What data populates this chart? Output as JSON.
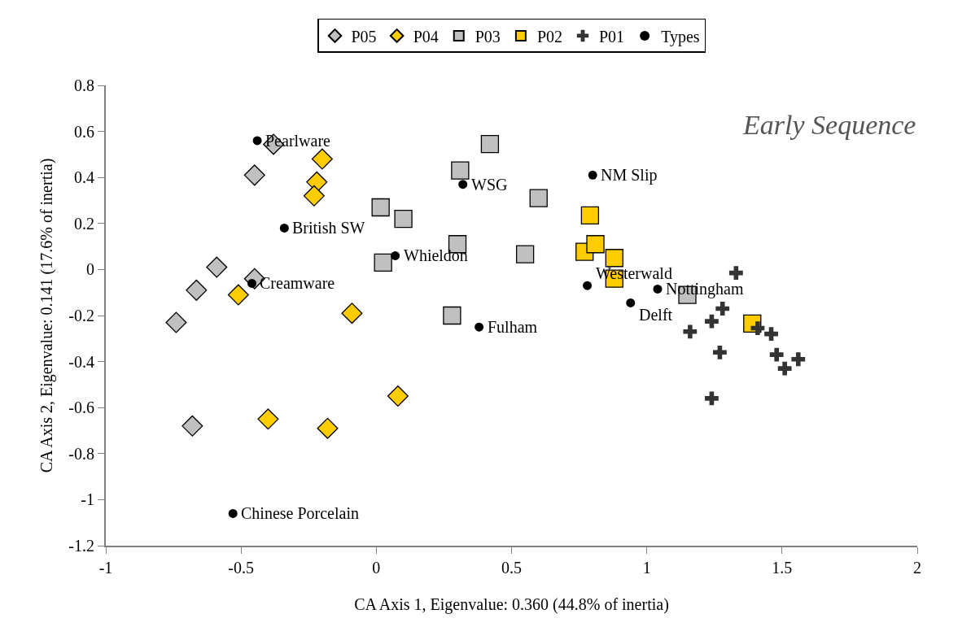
{
  "chart_data": {
    "type": "scatter",
    "xlabel": "CA Axis 1, Eigenvalue: 0.360 (44.8% of inertia)",
    "ylabel": "CA Axis 2, Eigenvalue: 0.141 (17.6% of inertia)",
    "xlim": [
      -1,
      2
    ],
    "xticks": [
      -1,
      -0.5,
      0,
      0.5,
      1,
      1.5,
      2
    ],
    "ylim": [
      -1.2,
      0.8
    ],
    "yticks": [
      -1.2,
      -1,
      -0.8,
      -0.6,
      -0.4,
      -0.2,
      0,
      0.2,
      0.4,
      0.6,
      0.8
    ],
    "legend": "top",
    "series": [
      {
        "name": "P05",
        "color": "#c0c0c0",
        "marker": "diamond",
        "x": [
          -0.38,
          -0.45,
          -0.59,
          -0.665,
          -0.45,
          -0.74,
          -0.68
        ],
        "values": [
          0.544,
          0.41,
          0.01,
          -0.09,
          -0.04,
          -0.23,
          -0.68
        ]
      },
      {
        "name": "P04",
        "color": "#ffcc00",
        "marker": "diamond",
        "x": [
          -0.2,
          -0.22,
          -0.23,
          -0.51,
          -0.09,
          0.08,
          -0.4,
          -0.18
        ],
        "values": [
          0.48,
          0.38,
          0.32,
          -0.11,
          -0.19,
          -0.55,
          -0.65,
          -0.69
        ]
      },
      {
        "name": "P03",
        "color": "#c0c0c0",
        "marker": "square",
        "x": [
          0.42,
          0.31,
          0.6,
          0.016,
          0.1,
          0.3,
          0.55,
          0.025,
          0.28,
          1.15
        ],
        "values": [
          0.545,
          0.43,
          0.31,
          0.27,
          0.22,
          0.11,
          0.066,
          0.03,
          -0.2,
          -0.11
        ]
      },
      {
        "name": "P02",
        "color": "#ffcc00",
        "marker": "square",
        "x": [
          0.79,
          0.77,
          0.81,
          0.88,
          0.88,
          1.39
        ],
        "values": [
          0.235,
          0.077,
          0.11,
          0.05,
          -0.04,
          -0.235
        ]
      },
      {
        "name": "P01",
        "color": "#333333",
        "marker": "cross",
        "x": [
          1.33,
          1.28,
          1.24,
          1.16,
          1.41,
          1.46,
          1.27,
          1.48,
          1.56,
          1.51,
          1.24
        ],
        "values": [
          -0.015,
          -0.17,
          -0.225,
          -0.27,
          -0.255,
          -0.28,
          -0.36,
          -0.37,
          -0.39,
          -0.43,
          -0.56
        ]
      },
      {
        "name": "Types",
        "color": "#000000",
        "marker": "circle",
        "x": [
          -0.44,
          -0.34,
          -0.46,
          0.32,
          0.8,
          0.07,
          0.38,
          0.78,
          1.04,
          0.94,
          -0.53
        ],
        "values": [
          0.56,
          0.18,
          -0.06,
          0.37,
          0.41,
          0.06,
          -0.25,
          -0.07,
          -0.085,
          -0.145,
          -1.06
        ]
      }
    ],
    "annotations": [
      "Early Sequence",
      {
        "text": "Pearlware",
        "x": -0.44,
        "y": 0.56
      },
      {
        "text": "British SW",
        "x": -0.34,
        "y": 0.18
      },
      {
        "text": "Creamware",
        "x": -0.46,
        "y": -0.06
      },
      {
        "text": "WSG",
        "x": 0.32,
        "y": 0.37
      },
      {
        "text": "NM Slip",
        "x": 0.8,
        "y": 0.41
      },
      {
        "text": "Whieldon",
        "x": 0.07,
        "y": 0.06
      },
      {
        "text": "Fulham",
        "x": 0.38,
        "y": -0.25
      },
      {
        "text": "Westerwald",
        "x": 0.78,
        "y": -0.07
      },
      {
        "text": "Nottingham",
        "x": 1.04,
        "y": -0.085
      },
      {
        "text": "Delft",
        "x": 0.94,
        "y": -0.145
      },
      {
        "text": "Chinese Porcelain",
        "x": -0.53,
        "y": -1.06
      }
    ]
  }
}
